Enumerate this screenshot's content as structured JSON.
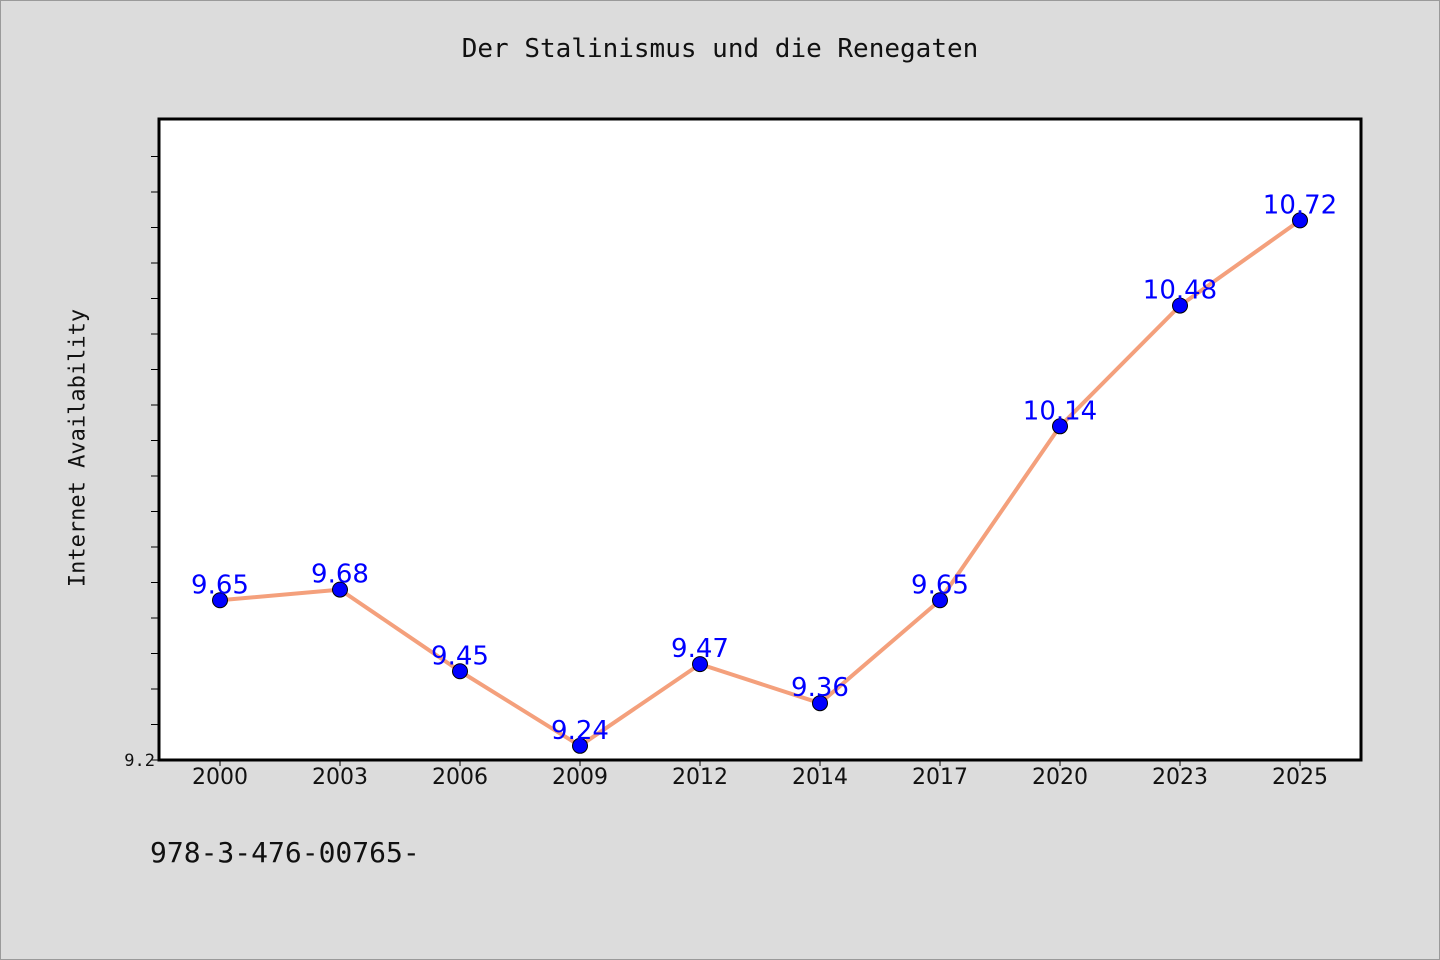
{
  "chart_data": {
    "type": "line",
    "title": "Der Stalinismus und die Renegaten",
    "xlabel": "",
    "ylabel": "Internet Availability",
    "categories": [
      "2000",
      "2003",
      "2006",
      "2009",
      "2012",
      "2014",
      "2017",
      "2020",
      "2023",
      "2025"
    ],
    "series": [
      {
        "values": [
          9.65,
          9.68,
          9.45,
          9.24,
          9.47,
          9.36,
          9.65,
          10.14,
          10.48,
          10.72
        ],
        "labels": [
          "9.65",
          "9.68",
          "9.45",
          "9.24",
          "9.47",
          "9.36",
          "9.65",
          "10.14",
          "10.48",
          "10.72"
        ],
        "line_color": "#f4a07c",
        "marker_color": "#0000ff"
      }
    ],
    "yticks": [
      "9.2"
    ],
    "ylim": [
      9.2,
      11.0
    ],
    "grid": false,
    "plot_background": "#ffffff"
  },
  "footnote": "978-3-476-00765-",
  "colors": {
    "background": "#dcdcdc",
    "line": "#f4a07c",
    "marker": "#0000ff",
    "data_label": "#0000ff"
  }
}
